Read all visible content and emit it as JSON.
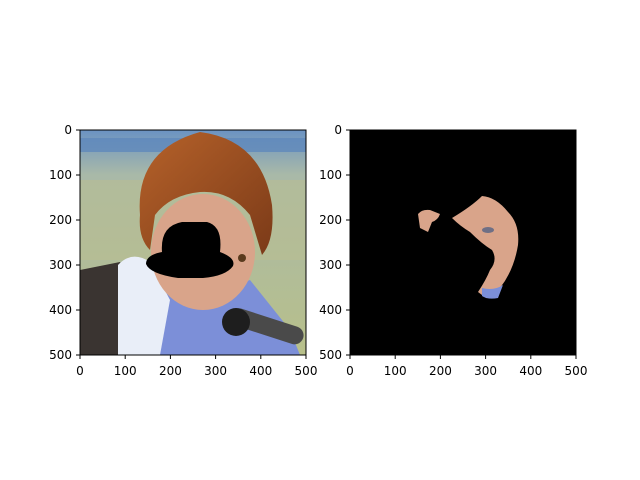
{
  "figure": {
    "background": "#ffffff",
    "axes": [
      {
        "name": "original-image",
        "content": "photo of person with partially masked face",
        "x_range": [
          0,
          500
        ],
        "y_range": [
          0,
          500
        ],
        "x_ticks": [
          "0",
          "100",
          "200",
          "300",
          "400",
          "500"
        ],
        "y_ticks": [
          "0",
          "100",
          "200",
          "300",
          "400",
          "500"
        ]
      },
      {
        "name": "segmented-face",
        "content": "black background with isolated skin region",
        "x_range": [
          0,
          500
        ],
        "y_range": [
          0,
          500
        ],
        "x_ticks": [
          "0",
          "100",
          "200",
          "300",
          "400",
          "500"
        ],
        "y_ticks": [
          "0",
          "100",
          "200",
          "300",
          "400",
          "500"
        ]
      }
    ],
    "colors": {
      "mask": "#000000",
      "hair": "#9a4b20",
      "skin": "#d9a48a",
      "sweater": "#7c8fd8",
      "scarf": "#e9eef8",
      "jacket": "#3a3431",
      "background_top": "#6b93c3",
      "background_bottom": "#b8c08a"
    }
  }
}
